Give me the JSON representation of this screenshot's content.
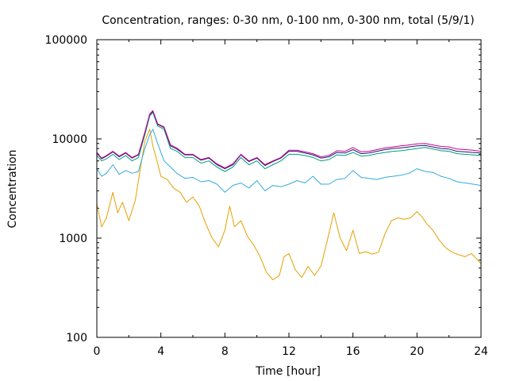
{
  "chart_data": {
    "type": "line",
    "title": "Concentration, ranges: 0-30 nm, 0-100 nm, 0-300 nm, total (5/9/1)",
    "xlabel": "Time [hour]",
    "ylabel": "Concentration",
    "xlim": [
      0,
      24
    ],
    "ylim": [
      100,
      100000
    ],
    "yscale": "log",
    "grid": false,
    "legend": "none",
    "x_ticks": [
      "0",
      "4",
      "8",
      "12",
      "16",
      "20",
      "24"
    ],
    "y_ticks": [
      "100",
      "1000",
      "10000",
      "100000"
    ],
    "series": [
      {
        "color": "#e6a000",
        "x": [
          0,
          0.3,
          0.6,
          1.0,
          1.3,
          1.6,
          2.0,
          2.4,
          2.7,
          3.0,
          3.3,
          3.5,
          3.7,
          4.0,
          4.4,
          4.8,
          5.2,
          5.6,
          6.0,
          6.4,
          6.8,
          7.2,
          7.6,
          8.0,
          8.3,
          8.6,
          9.0,
          9.4,
          9.8,
          10.2,
          10.6,
          11.0,
          11.4,
          11.7,
          12.0,
          12.4,
          12.8,
          13.2,
          13.6,
          14.0,
          14.4,
          14.8,
          15.2,
          15.6,
          16.0,
          16.4,
          16.8,
          17.2,
          17.6,
          18.0,
          18.4,
          18.8,
          19.2,
          19.6,
          20.0,
          20.3,
          20.6,
          21.0,
          21.4,
          21.8,
          22.2,
          22.6,
          23.0,
          23.4,
          23.8,
          24.0
        ],
        "y": [
          2200,
          1300,
          1600,
          2900,
          1800,
          2300,
          1500,
          2400,
          4800,
          9500,
          12500,
          8500,
          6500,
          4200,
          3900,
          3200,
          2900,
          2300,
          2600,
          2100,
          1400,
          1000,
          820,
          1200,
          2100,
          1300,
          1500,
          1050,
          850,
          650,
          450,
          380,
          420,
          650,
          700,
          480,
          400,
          520,
          420,
          520,
          950,
          1800,
          1000,
          750,
          1200,
          700,
          730,
          690,
          720,
          1100,
          1500,
          1600,
          1550,
          1600,
          1850,
          1650,
          1400,
          1200,
          950,
          800,
          720,
          680,
          650,
          700,
          600,
          550
        ]
      },
      {
        "color": "#33aadd",
        "x": [
          0,
          0.3,
          0.6,
          1.0,
          1.4,
          1.8,
          2.2,
          2.6,
          3.0,
          3.3,
          3.5,
          3.8,
          4.2,
          4.6,
          5.0,
          5.5,
          6.0,
          6.5,
          7.0,
          7.5,
          8.0,
          8.5,
          9.0,
          9.5,
          10.0,
          10.5,
          11.0,
          11.5,
          12.0,
          12.5,
          13.0,
          13.5,
          14.0,
          14.5,
          15.0,
          15.5,
          16.0,
          16.5,
          17.0,
          17.5,
          18.0,
          18.5,
          19.0,
          19.5,
          20.0,
          20.5,
          21.0,
          21.5,
          22.0,
          22.5,
          23.0,
          23.5,
          24.0
        ],
        "y": [
          5000,
          4200,
          4500,
          5500,
          4400,
          4800,
          4500,
          4700,
          8000,
          11000,
          12500,
          9000,
          6000,
          5200,
          4500,
          4000,
          4100,
          3700,
          3800,
          3500,
          2900,
          3400,
          3600,
          3200,
          3800,
          3000,
          3400,
          3300,
          3500,
          3800,
          3600,
          4200,
          3500,
          3500,
          3900,
          4000,
          4800,
          4100,
          4000,
          3900,
          4100,
          4200,
          4300,
          4500,
          5000,
          4700,
          4600,
          4200,
          4000,
          3700,
          3600,
          3500,
          3400
        ]
      },
      {
        "color": "#009e73",
        "x": [
          0,
          0.3,
          0.6,
          1.0,
          1.4,
          1.8,
          2.2,
          2.6,
          3.0,
          3.3,
          3.5,
          3.8,
          4.2,
          4.6,
          5.0,
          5.5,
          6.0,
          6.5,
          7.0,
          7.5,
          8.0,
          8.5,
          9.0,
          9.5,
          10.0,
          10.5,
          11.0,
          11.5,
          12.0,
          12.5,
          13.0,
          13.5,
          14.0,
          14.5,
          15.0,
          15.5,
          16.0,
          16.5,
          17.0,
          17.5,
          18.0,
          18.5,
          19.0,
          19.5,
          20.0,
          20.5,
          21.0,
          21.5,
          22.0,
          22.5,
          23.0,
          23.5,
          24.0
        ],
        "y": [
          6800,
          6000,
          6300,
          7000,
          6200,
          6800,
          6000,
          6500,
          11000,
          17000,
          18500,
          13500,
          12500,
          8000,
          7500,
          6500,
          6500,
          5700,
          6000,
          5200,
          4700,
          5200,
          6500,
          5500,
          6000,
          5000,
          5500,
          6000,
          7000,
          7000,
          6800,
          6500,
          6000,
          6200,
          6900,
          6800,
          7300,
          6700,
          6800,
          7100,
          7300,
          7500,
          7600,
          7800,
          8000,
          8200,
          7900,
          7600,
          7500,
          7100,
          7000,
          6900,
          6800
        ]
      },
      {
        "color": "#1a1a80",
        "x": [
          0,
          0.3,
          0.6,
          1.0,
          1.4,
          1.8,
          2.2,
          2.6,
          3.0,
          3.3,
          3.5,
          3.8,
          4.2,
          4.6,
          5.0,
          5.5,
          6.0,
          6.5,
          7.0,
          7.5,
          8.0,
          8.5,
          9.0,
          9.5,
          10.0,
          10.5,
          11.0,
          11.5,
          12.0,
          12.5,
          13.0,
          13.5,
          14.0,
          14.5,
          15.0,
          15.5,
          16.0,
          16.5,
          17.0,
          17.5,
          18.0,
          18.5,
          19.0,
          19.5,
          20.0,
          20.5,
          21.0,
          21.5,
          22.0,
          22.5,
          23.0,
          23.5,
          24.0
        ],
        "y": [
          7200,
          6300,
          6700,
          7400,
          6600,
          7200,
          6400,
          6900,
          11500,
          17500,
          19000,
          14000,
          13000,
          8500,
          7900,
          6900,
          6900,
          6100,
          6400,
          5500,
          5000,
          5500,
          6900,
          5900,
          6400,
          5400,
          5900,
          6400,
          7500,
          7500,
          7200,
          6900,
          6400,
          6600,
          7300,
          7200,
          7800,
          7100,
          7200,
          7500,
          7800,
          8000,
          8100,
          8300,
          8500,
          8600,
          8300,
          8000,
          7900,
          7500,
          7400,
          7300,
          7200
        ]
      },
      {
        "color": "#cc0088",
        "x": [
          0,
          0.3,
          0.6,
          1.0,
          1.4,
          1.8,
          2.2,
          2.6,
          3.0,
          3.3,
          3.5,
          3.8,
          4.2,
          4.6,
          5.0,
          5.5,
          6.0,
          6.5,
          7.0,
          7.5,
          8.0,
          8.5,
          9.0,
          9.5,
          10.0,
          10.5,
          11.0,
          11.5,
          12.0,
          12.5,
          13.0,
          13.5,
          14.0,
          14.5,
          15.0,
          15.5,
          16.0,
          16.5,
          17.0,
          17.5,
          18.0,
          18.5,
          19.0,
          19.5,
          20.0,
          20.5,
          21.0,
          21.5,
          22.0,
          22.5,
          23.0,
          23.5,
          24.0
        ],
        "y": [
          7300,
          6400,
          6800,
          7500,
          6700,
          7300,
          6500,
          7000,
          11700,
          17800,
          19300,
          14200,
          13200,
          8700,
          8100,
          7000,
          7000,
          6200,
          6500,
          5600,
          5100,
          5600,
          7000,
          6000,
          6500,
          5500,
          6000,
          6500,
          7700,
          7700,
          7400,
          7100,
          6600,
          6800,
          7600,
          7500,
          8200,
          7400,
          7500,
          7800,
          8100,
          8300,
          8500,
          8700,
          8900,
          9000,
          8700,
          8400,
          8300,
          7900,
          7800,
          7700,
          7500
        ]
      }
    ]
  }
}
